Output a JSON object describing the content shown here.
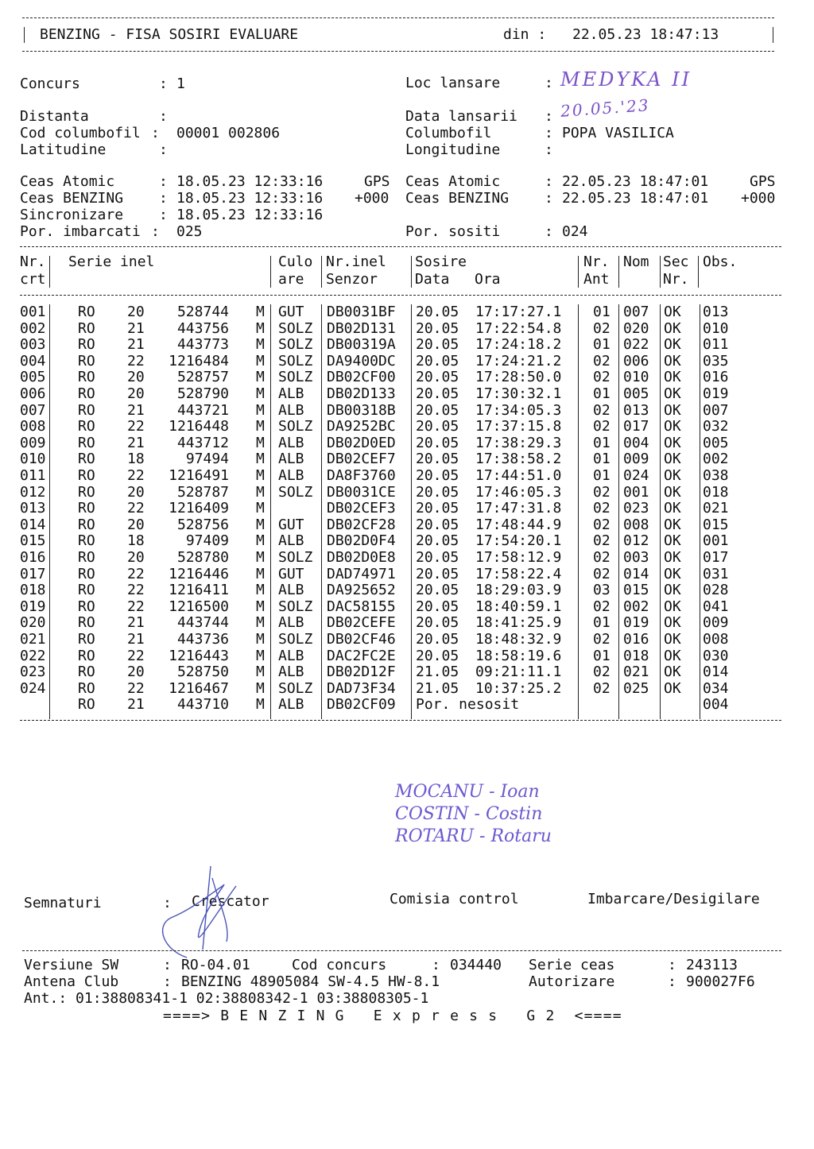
{
  "header": {
    "title": "BENZING - FISA SOSIRI EVALUARE",
    "din_label": "din :",
    "din_value": "22.05.23 18:47:13"
  },
  "info": {
    "concurs_label": "Concurs",
    "concurs_value": "1",
    "loc_lansare_label": "Loc lansare",
    "loc_lansare_value": "MEDYKA II",
    "distanta_label": "Distanta",
    "distanta_value": "",
    "data_lansarii_label": "Data lansarii",
    "data_lansarii_value": "20.05.'23",
    "cod_columbofil_label": "Cod columbofil",
    "cod_columbofil_value": "00001 002806",
    "columbofil_label": "Columbofil",
    "columbofil_value": "POPA VASILICA",
    "latitudine_label": "Latitudine",
    "latitudine_value": "",
    "longitudine_label": "Longitudine",
    "longitudine_value": "",
    "ceas_atomic_label": "Ceas Atomic",
    "ceas_atomic_start": "18.05.23 12:33:16",
    "ceas_atomic_start_src": "GPS",
    "ceas_atomic_end": "22.05.23 18:47:01",
    "ceas_atomic_end_src": "GPS",
    "ceas_benzing_label": "Ceas BENZING",
    "ceas_benzing_start": "18.05.23 12:33:16",
    "ceas_benzing_start_offset": "+000",
    "ceas_benzing_end": "22.05.23 18:47:01",
    "ceas_benzing_end_offset": "+000",
    "sincronizare_label": "Sincronizare",
    "sincronizare_value": "18.05.23 12:33:16",
    "por_imbarcati_label": "Por. imbarcati",
    "por_imbarcati_value": "025",
    "por_sositi_label": "Por. sositi",
    "por_sositi_value": "024"
  },
  "table": {
    "headers": {
      "nr_1": "Nr.",
      "nr_2": "crt",
      "serie": "Serie inel",
      "culoare_1": "Culo",
      "culoare_2": "are",
      "senzor_1": "Nr.inel",
      "senzor_2": "Senzor",
      "sosire_1": "Sosire",
      "sosire_data": "Data",
      "sosire_ora": "Ora",
      "ant_1": "Nr.",
      "ant_2": "Ant",
      "nom": "Nom",
      "sec_1": "Sec",
      "sec_2": "Nr.",
      "obs": "Obs."
    },
    "rows": [
      {
        "nr": "001",
        "country": "RO",
        "year": "20",
        "ring": "528744",
        "sex": "M",
        "color": "GUT",
        "sensor": "DB0031BF",
        "date": "20.05",
        "time": "17:17:27.1",
        "ant": "01",
        "nom": "007",
        "sec": "OK",
        "obs": "013"
      },
      {
        "nr": "002",
        "country": "RO",
        "year": "21",
        "ring": "443756",
        "sex": "M",
        "color": "SOLZ",
        "sensor": "DB02D131",
        "date": "20.05",
        "time": "17:22:54.8",
        "ant": "02",
        "nom": "020",
        "sec": "OK",
        "obs": "010"
      },
      {
        "nr": "003",
        "country": "RO",
        "year": "21",
        "ring": "443773",
        "sex": "M",
        "color": "SOLZ",
        "sensor": "DB00319A",
        "date": "20.05",
        "time": "17:24:18.2",
        "ant": "01",
        "nom": "022",
        "sec": "OK",
        "obs": "011"
      },
      {
        "nr": "004",
        "country": "RO",
        "year": "22",
        "ring": "1216484",
        "sex": "M",
        "color": "SOLZ",
        "sensor": "DA9400DC",
        "date": "20.05",
        "time": "17:24:21.2",
        "ant": "02",
        "nom": "006",
        "sec": "OK",
        "obs": "035"
      },
      {
        "nr": "005",
        "country": "RO",
        "year": "20",
        "ring": "528757",
        "sex": "M",
        "color": "SOLZ",
        "sensor": "DB02CF00",
        "date": "20.05",
        "time": "17:28:50.0",
        "ant": "02",
        "nom": "010",
        "sec": "OK",
        "obs": "016"
      },
      {
        "nr": "006",
        "country": "RO",
        "year": "20",
        "ring": "528790",
        "sex": "M",
        "color": "ALB",
        "sensor": "DB02D133",
        "date": "20.05",
        "time": "17:30:32.1",
        "ant": "01",
        "nom": "005",
        "sec": "OK",
        "obs": "019"
      },
      {
        "nr": "007",
        "country": "RO",
        "year": "21",
        "ring": "443721",
        "sex": "M",
        "color": "ALB",
        "sensor": "DB00318B",
        "date": "20.05",
        "time": "17:34:05.3",
        "ant": "02",
        "nom": "013",
        "sec": "OK",
        "obs": "007"
      },
      {
        "nr": "008",
        "country": "RO",
        "year": "22",
        "ring": "1216448",
        "sex": "M",
        "color": "SOLZ",
        "sensor": "DA9252BC",
        "date": "20.05",
        "time": "17:37:15.8",
        "ant": "02",
        "nom": "017",
        "sec": "OK",
        "obs": "032"
      },
      {
        "nr": "009",
        "country": "RO",
        "year": "21",
        "ring": "443712",
        "sex": "M",
        "color": "ALB",
        "sensor": "DB02D0ED",
        "date": "20.05",
        "time": "17:38:29.3",
        "ant": "01",
        "nom": "004",
        "sec": "OK",
        "obs": "005"
      },
      {
        "nr": "010",
        "country": "RO",
        "year": "18",
        "ring": "97494",
        "sex": "M",
        "color": "ALB",
        "sensor": "DB02CEF7",
        "date": "20.05",
        "time": "17:38:58.2",
        "ant": "01",
        "nom": "009",
        "sec": "OK",
        "obs": "002"
      },
      {
        "nr": "011",
        "country": "RO",
        "year": "22",
        "ring": "1216491",
        "sex": "M",
        "color": "ALB",
        "sensor": "DA8F3760",
        "date": "20.05",
        "time": "17:44:51.0",
        "ant": "01",
        "nom": "024",
        "sec": "OK",
        "obs": "038"
      },
      {
        "nr": "012",
        "country": "RO",
        "year": "20",
        "ring": "528787",
        "sex": "M",
        "color": "SOLZ",
        "sensor": "DB0031CE",
        "date": "20.05",
        "time": "17:46:05.3",
        "ant": "02",
        "nom": "001",
        "sec": "OK",
        "obs": "018"
      },
      {
        "nr": "013",
        "country": "RO",
        "year": "22",
        "ring": "1216409",
        "sex": "M",
        "color": "",
        "sensor": "DB02CEF3",
        "date": "20.05",
        "time": "17:47:31.8",
        "ant": "02",
        "nom": "023",
        "sec": "OK",
        "obs": "021"
      },
      {
        "nr": "014",
        "country": "RO",
        "year": "20",
        "ring": "528756",
        "sex": "M",
        "color": "GUT",
        "sensor": "DB02CF28",
        "date": "20.05",
        "time": "17:48:44.9",
        "ant": "02",
        "nom": "008",
        "sec": "OK",
        "obs": "015"
      },
      {
        "nr": "015",
        "country": "RO",
        "year": "18",
        "ring": "97409",
        "sex": "M",
        "color": "ALB",
        "sensor": "DB02D0F4",
        "date": "20.05",
        "time": "17:54:20.1",
        "ant": "02",
        "nom": "012",
        "sec": "OK",
        "obs": "001"
      },
      {
        "nr": "016",
        "country": "RO",
        "year": "20",
        "ring": "528780",
        "sex": "M",
        "color": "SOLZ",
        "sensor": "DB02D0E8",
        "date": "20.05",
        "time": "17:58:12.9",
        "ant": "02",
        "nom": "003",
        "sec": "OK",
        "obs": "017"
      },
      {
        "nr": "017",
        "country": "RO",
        "year": "22",
        "ring": "1216446",
        "sex": "M",
        "color": "GUT",
        "sensor": "DAD74971",
        "date": "20.05",
        "time": "17:58:22.4",
        "ant": "02",
        "nom": "014",
        "sec": "OK",
        "obs": "031"
      },
      {
        "nr": "018",
        "country": "RO",
        "year": "22",
        "ring": "1216411",
        "sex": "M",
        "color": "ALB",
        "sensor": "DA925652",
        "date": "20.05",
        "time": "18:29:03.9",
        "ant": "03",
        "nom": "015",
        "sec": "OK",
        "obs": "028"
      },
      {
        "nr": "019",
        "country": "RO",
        "year": "22",
        "ring": "1216500",
        "sex": "M",
        "color": "SOLZ",
        "sensor": "DAC58155",
        "date": "20.05",
        "time": "18:40:59.1",
        "ant": "02",
        "nom": "002",
        "sec": "OK",
        "obs": "041"
      },
      {
        "nr": "020",
        "country": "RO",
        "year": "21",
        "ring": "443744",
        "sex": "M",
        "color": "ALB",
        "sensor": "DB02CEFE",
        "date": "20.05",
        "time": "18:41:25.9",
        "ant": "01",
        "nom": "019",
        "sec": "OK",
        "obs": "009"
      },
      {
        "nr": "021",
        "country": "RO",
        "year": "21",
        "ring": "443736",
        "sex": "M",
        "color": "SOLZ",
        "sensor": "DB02CF46",
        "date": "20.05",
        "time": "18:48:32.9",
        "ant": "02",
        "nom": "016",
        "sec": "OK",
        "obs": "008"
      },
      {
        "nr": "022",
        "country": "RO",
        "year": "22",
        "ring": "1216443",
        "sex": "M",
        "color": "ALB",
        "sensor": "DAC2FC2E",
        "date": "20.05",
        "time": "18:58:19.6",
        "ant": "01",
        "nom": "018",
        "sec": "OK",
        "obs": "030"
      },
      {
        "nr": "023",
        "country": "RO",
        "year": "20",
        "ring": "528750",
        "sex": "M",
        "color": "ALB",
        "sensor": "DB02D12F",
        "date": "21.05",
        "time": "09:21:11.1",
        "ant": "02",
        "nom": "021",
        "sec": "OK",
        "obs": "014"
      },
      {
        "nr": "024",
        "country": "RO",
        "year": "22",
        "ring": "1216467",
        "sex": "M",
        "color": "SOLZ",
        "sensor": "DAD73F34",
        "date": "21.05",
        "time": "10:37:25.2",
        "ant": "02",
        "nom": "025",
        "sec": "OK",
        "obs": "034"
      },
      {
        "nr": "",
        "country": "RO",
        "year": "21",
        "ring": "443710",
        "sex": "M",
        "color": "ALB",
        "sensor": "DB02CF09",
        "date": "Por. nesosit",
        "time": "",
        "ant": "",
        "nom": "",
        "sec": "",
        "obs": "004"
      }
    ]
  },
  "commission_handwritten": [
    "MOCANU - Ioan",
    "COSTIN - Costin",
    "ROTARU - Rotaru"
  ],
  "signatures": {
    "label": "Semnaturi",
    "crescator": "Crescator",
    "comisia": "Comisia control",
    "imbarcare": "Imbarcare/Desigilare"
  },
  "footer": {
    "versiune_label": "Versiune SW",
    "versiune_value": "RO-04.01",
    "cod_concurs_label": "Cod concurs",
    "cod_concurs_value": "034440",
    "serie_ceas_label": "Serie ceas",
    "serie_ceas_value": "243113",
    "antena_label": "Antena Club",
    "antena_value": "BENZING 48905084 SW-4.5 HW-8.1",
    "autorizare_label": "Autorizare",
    "autorizare_value": "900027F6",
    "ant_line": "Ant.: 01:38808341-1 02:38808342-1 03:38808305-1",
    "brand_line": "====> B E N Z I N G   E x p r e s s   G 2  <===="
  },
  "colors": {
    "ink": "#111111",
    "handwriting": "#7b52c9",
    "signature": "#4a55b8"
  }
}
